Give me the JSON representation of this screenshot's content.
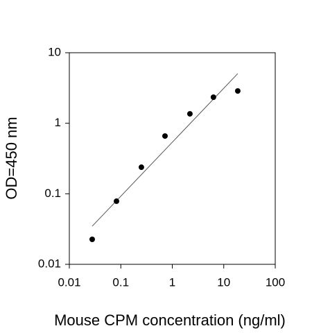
{
  "chart_data": {
    "type": "scatter",
    "x_label": "Mouse CPM concentration (ng/ml)",
    "y_label": "OD=450 nm",
    "xscale": "log",
    "yscale": "log",
    "xlim": [
      0.01,
      100
    ],
    "ylim": [
      0.01,
      10
    ],
    "xticks": [
      0.01,
      0.1,
      1,
      10,
      100
    ],
    "yticks": [
      0.01,
      0.1,
      1,
      10
    ],
    "series": [
      {
        "color": "#000000",
        "x": [
          0.0278,
          0.0824,
          0.251,
          0.722,
          2.2,
          6.3,
          18.7
        ],
        "values": [
          0.0226,
          0.0785,
          0.238,
          0.659,
          1.36,
          2.34,
          2.87
        ]
      }
    ],
    "trendline": {
      "color": "#555555",
      "x": [
        0.0278,
        18.7
      ],
      "values": [
        0.0347,
        5.06
      ]
    }
  }
}
